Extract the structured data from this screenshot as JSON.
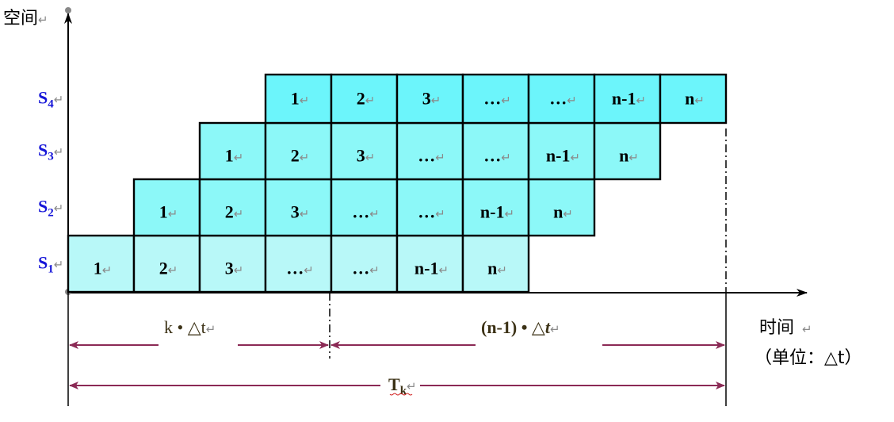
{
  "y_axis_label": "空间",
  "x_axis_label": "时间",
  "x_axis_unit_label": "（单位：△t）",
  "return_mark": "↵",
  "colors": {
    "cell_fill_light": "#b8f8f8",
    "cell_fill_mid": "#8cf8f8",
    "cell_fill_dark": "#6cf5fb",
    "stage_label": "#1515d8",
    "dimension_line": "#8b2a55",
    "dimension_text": "#3c3216"
  },
  "stages": [
    {
      "name": "S",
      "sub": "1",
      "cells": [
        "1",
        "2",
        "3",
        "…",
        "…",
        "n-1",
        "n"
      ]
    },
    {
      "name": "S",
      "sub": "2",
      "cells": [
        "1",
        "2",
        "3",
        "…",
        "…",
        "n-1",
        "n"
      ]
    },
    {
      "name": "S",
      "sub": "3",
      "cells": [
        "1",
        "2",
        "3",
        "…",
        "…",
        "n-1",
        "n"
      ]
    },
    {
      "name": "S",
      "sub": "4",
      "cells": [
        "1",
        "2",
        "3",
        "…",
        "…",
        "n-1",
        "n"
      ]
    }
  ],
  "dimensions": {
    "fill_time_label": "k • △t",
    "remaining_time_label_pre": "(n-1) • △",
    "remaining_time_label_var": "t",
    "total_time_label": "T",
    "total_time_sub": "k"
  }
}
